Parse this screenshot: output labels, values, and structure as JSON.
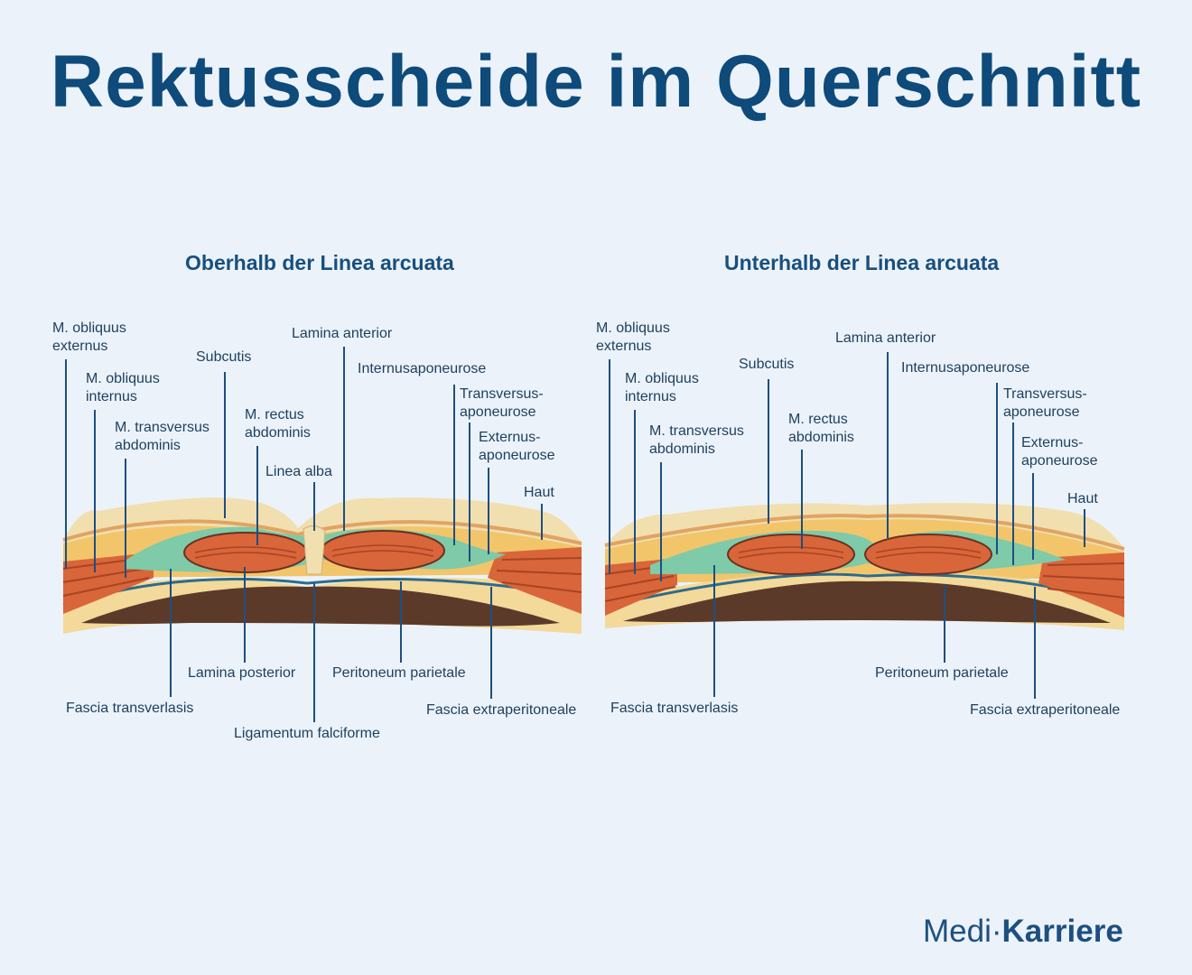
{
  "title": "Rektusscheide im Querschnitt",
  "brand": {
    "part1": "Medi",
    "part2": "Karriere"
  },
  "panels": [
    {
      "subtitle": "Oberhalb der Linea arcuata",
      "labels": {
        "obl_ext": "M. obliquus\nexternus",
        "obl_int": "M. obliquus\ninternus",
        "transversus": "M. transversus\nabdominis",
        "subcutis": "Subcutis",
        "rectus": "M. rectus\nabdominis",
        "linea_alba": "Linea alba",
        "lamina_anterior": "Lamina anterior",
        "internus_apo": "Internusaponeurose",
        "transversus_apo": "Transversus-\naponeurose",
        "externus_apo": "Externus-\naponeurose",
        "haut": "Haut",
        "lamina_posterior": "Lamina posterior",
        "peritoneum": "Peritoneum parietale",
        "fascia_transv": "Fascia transverlasis",
        "ligamentum": "Ligamentum falciforme",
        "fascia_extra": "Fascia extraperitoneale"
      }
    },
    {
      "subtitle": "Unterhalb der Linea arcuata",
      "labels": {
        "obl_ext": "M. obliquus\nexternus",
        "obl_int": "M. obliquus\ninternus",
        "transversus": "M. transversus\nabdominis",
        "subcutis": "Subcutis",
        "rectus": "M. rectus\nabdominis",
        "lamina_anterior": "Lamina anterior",
        "internus_apo": "Internusaponeurose",
        "transversus_apo": "Transversus-\naponeurose",
        "externus_apo": "Externus-\naponeurose",
        "haut": "Haut",
        "peritoneum": "Peritoneum parietale",
        "fascia_transv": "Fascia transverlasis",
        "fascia_extra": "Fascia extraperitoneale"
      }
    }
  ],
  "colors": {
    "skin": "#f2dfb0",
    "fat": "#f2c56b",
    "fascia": "#7fcaa8",
    "muscle": "#d9653a",
    "cavity": "#5b3a2a",
    "title": "#0e4a7a"
  }
}
